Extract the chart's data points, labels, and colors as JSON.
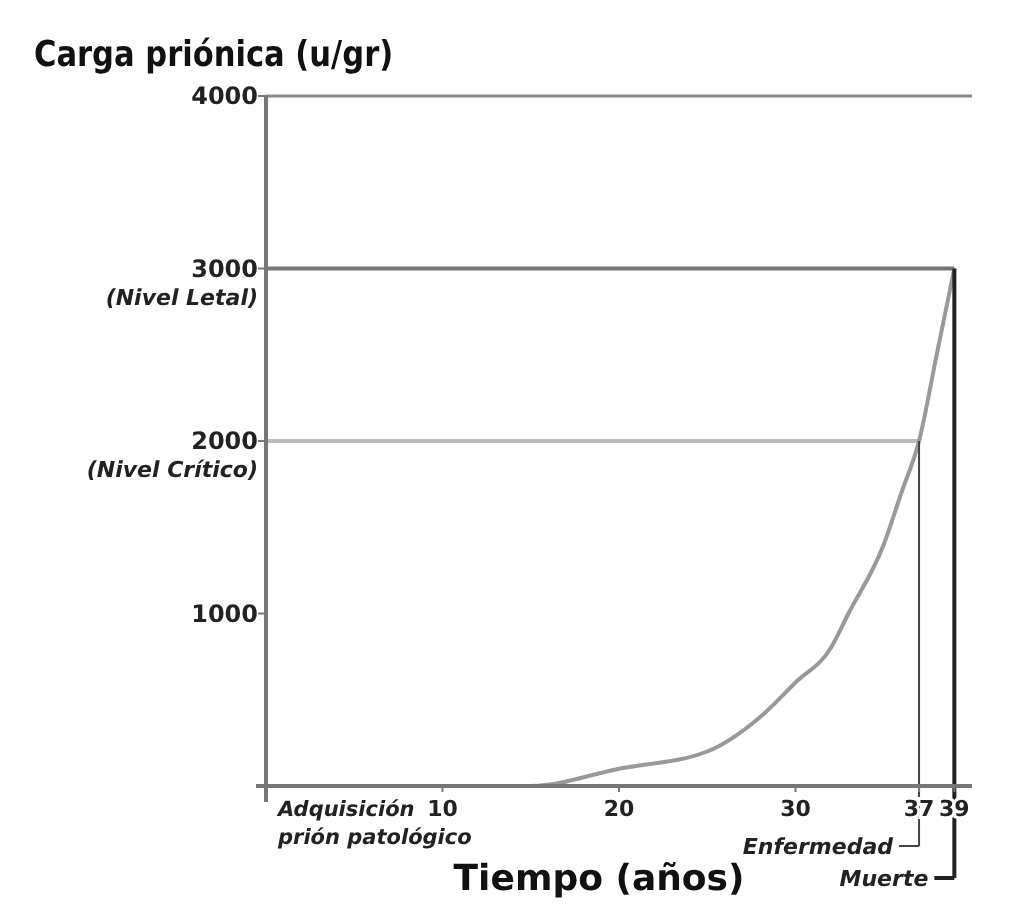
{
  "chart_data": {
    "type": "line",
    "ylabel": "Carga priónica (u/gr)",
    "xlabel": "Tiempo (años)",
    "x": [
      5,
      15,
      20,
      25,
      28,
      30,
      32,
      33,
      35,
      36,
      37,
      38,
      39
    ],
    "series": [
      {
        "color": "#999999",
        "values": [
          0,
          0,
          100,
          200,
          400,
          600,
          800,
          1000,
          1400,
          1700,
          2000,
          2500,
          3000
        ]
      }
    ],
    "xlim": [
      0,
      40
    ],
    "xticks": [
      10,
      20,
      30,
      37,
      39
    ],
    "ylim": [
      0,
      4000
    ],
    "yticks": [
      1000,
      2000,
      3000,
      4000
    ],
    "ref_lines": [
      {
        "axis": "y",
        "value": 2000,
        "label": "(Nivel Crítico)",
        "color": "#bbbbbb"
      },
      {
        "axis": "y",
        "value": 3000,
        "label": "(Nivel Letal)",
        "color": "#777777"
      },
      {
        "axis": "x",
        "value": 37,
        "label": "Enfermedad",
        "color": "#444444"
      },
      {
        "axis": "x",
        "value": 39,
        "label": "Muerte",
        "color": "#222222"
      }
    ],
    "annotations": [
      "Adquisición prión patológico"
    ],
    "grid": false,
    "marker": "none",
    "line_style": "solid"
  }
}
